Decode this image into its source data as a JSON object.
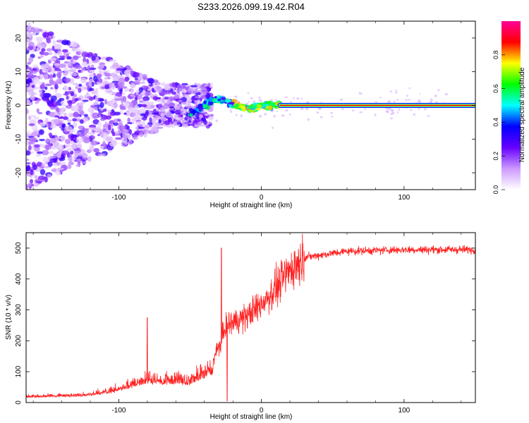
{
  "title": "S233.2026.099.19.42.R04",
  "chart_data": [
    {
      "type": "heatmap",
      "name": "spectrogram",
      "xlabel": "Height of straight line (km)",
      "ylabel": "Frequency (Hz)",
      "xlim": [
        -165,
        150
      ],
      "ylim": [
        -25,
        25
      ],
      "xticks": [
        -100,
        0,
        100
      ],
      "yticks": [
        -20,
        -10,
        0,
        10,
        20
      ],
      "xtick_labels": [
        "-100",
        "0",
        "100"
      ],
      "ytick_labels": [
        "-20",
        "-10",
        "0",
        "10",
        "20"
      ],
      "colorbar": {
        "label": "Normalized spectral amplitude",
        "range": [
          0,
          1
        ],
        "ticks": [
          0.0,
          0.2,
          0.4,
          0.6,
          0.8
        ],
        "tick_labels": [
          "0.0",
          "0.2",
          "0.4",
          "0.6",
          "0.8"
        ],
        "colors": [
          "#ffffff",
          "#cc99ff",
          "#6600ff",
          "#0000ff",
          "#00ffff",
          "#00ff00",
          "#ffff00",
          "#ff0000",
          "#ff0099"
        ]
      },
      "features": {
        "scatter_region_x": [
          -165,
          -35
        ],
        "transition_region_x": [
          -50,
          13
        ],
        "steady_tone_x": [
          13,
          150
        ],
        "steady_tone_freq": 0
      }
    },
    {
      "type": "line",
      "name": "snr",
      "xlabel": "Height of straight line (km)",
      "ylabel": "SNR (10 * v/v)",
      "xlim": [
        -165,
        150
      ],
      "ylim": [
        0,
        550
      ],
      "xticks": [
        -100,
        0,
        100
      ],
      "yticks": [
        0,
        100,
        200,
        300,
        400,
        500
      ],
      "xtick_labels": [
        "-100",
        "0",
        "100"
      ],
      "ytick_labels": [
        "0",
        "100",
        "200",
        "300",
        "400",
        "500"
      ],
      "line_color": "#ff2020",
      "trend": {
        "x": [
          -165,
          -125,
          -105,
          -80,
          -50,
          -35,
          -33,
          -28,
          -25,
          -10,
          0,
          10,
          20,
          30,
          60,
          100,
          150
        ],
        "y": [
          15,
          20,
          30,
          60,
          55,
          90,
          150,
          200,
          250,
          280,
          320,
          370,
          430,
          470,
          490,
          495,
          495
        ]
      },
      "spikes": [
        {
          "x": -80,
          "y": 275
        },
        {
          "x": -28,
          "y": 500
        },
        {
          "x": -24,
          "y": 5
        }
      ]
    }
  ]
}
